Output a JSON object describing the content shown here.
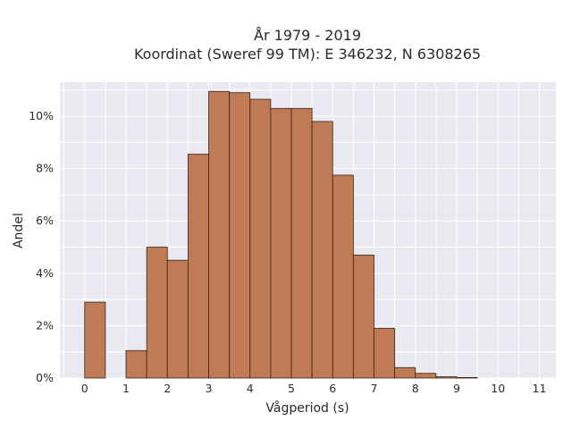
{
  "chart_data": {
    "type": "bar",
    "title_lines": [
      "År 1979 - 2019",
      "Koordinat (Sweref 99 TM): E 346232, N 6308265"
    ],
    "xlabel": "Vågperiod (s)",
    "ylabel": "Andel",
    "xlim": [
      -0.6,
      11.4
    ],
    "ylim": [
      0,
      11.3
    ],
    "x_ticks": [
      0,
      1,
      2,
      3,
      4,
      5,
      6,
      7,
      8,
      9,
      10,
      11
    ],
    "x_tick_labels": [
      "0",
      "1",
      "2",
      "3",
      "4",
      "5",
      "6",
      "7",
      "8",
      "9",
      "10",
      "11"
    ],
    "y_ticks": [
      0,
      2,
      4,
      6,
      8,
      10
    ],
    "y_tick_labels": [
      "0%",
      "2%",
      "4%",
      "6%",
      "8%",
      "10%"
    ],
    "bin_width": 0.5,
    "bins": [
      {
        "start": 0.0,
        "value": 2.9
      },
      {
        "start": 0.5,
        "value": 0.0
      },
      {
        "start": 1.0,
        "value": 1.05
      },
      {
        "start": 1.5,
        "value": 5.0
      },
      {
        "start": 2.0,
        "value": 4.5
      },
      {
        "start": 2.5,
        "value": 8.55
      },
      {
        "start": 3.0,
        "value": 10.95
      },
      {
        "start": 3.5,
        "value": 10.9
      },
      {
        "start": 4.0,
        "value": 10.65
      },
      {
        "start": 4.5,
        "value": 10.3
      },
      {
        "start": 5.0,
        "value": 10.3
      },
      {
        "start": 5.5,
        "value": 9.8
      },
      {
        "start": 6.0,
        "value": 7.75
      },
      {
        "start": 6.5,
        "value": 4.7
      },
      {
        "start": 7.0,
        "value": 1.9
      },
      {
        "start": 7.5,
        "value": 0.4
      },
      {
        "start": 8.0,
        "value": 0.18
      },
      {
        "start": 8.5,
        "value": 0.05
      },
      {
        "start": 9.0,
        "value": 0.02
      }
    ],
    "grid": true,
    "colors": {
      "bar_fill": "#bf7a56",
      "bar_edge": "#3b2417",
      "plot_background": "#e9e9f1",
      "grid": "#ffffff"
    }
  }
}
